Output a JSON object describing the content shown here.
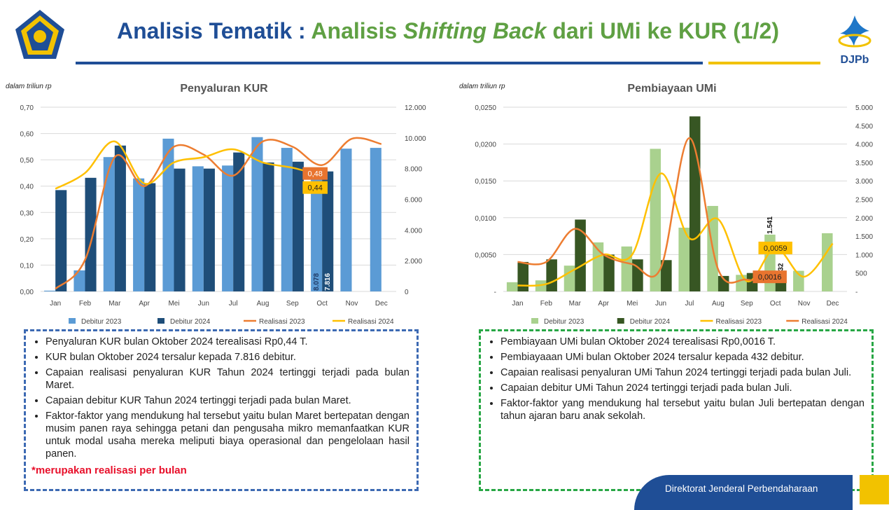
{
  "header": {
    "title_part1": "Analisis Tematik : ",
    "title_part2": "Analisis ",
    "title_part3": "Shifting Back",
    "title_part4": " dari UMi ke KUR (1/2)",
    "logo_right_text": "DJPb",
    "colors": {
      "blue": "#1f4e96",
      "green": "#5fa043",
      "gold": "#f2c200"
    }
  },
  "kur": {
    "unit_note": "dalam triliun rp",
    "chart_title": "Penyaluran KUR",
    "callouts": {
      "r2023": "0,48",
      "r2024": "0,44"
    },
    "bar_labels": {
      "d2023": "8.078",
      "d2024": "7.816"
    }
  },
  "umi": {
    "unit_note": "dalam triliun rp",
    "chart_title": "Pembiayaan UMi",
    "callouts": {
      "r2023": "0,0059",
      "r2024": "0,0016"
    },
    "bar_labels": {
      "d2023": "1.541",
      "d2024": "432"
    }
  },
  "chart_data": [
    {
      "type": "bar",
      "title": "Penyaluran KUR",
      "categories": [
        "Jan",
        "Feb",
        "Mar",
        "Apr",
        "Mei",
        "Jun",
        "Jul",
        "Aug",
        "Sep",
        "Oct",
        "Nov",
        "Dec"
      ],
      "left_axis": {
        "ticks": [
          "0,00",
          "0,10",
          "0,20",
          "0,30",
          "0,40",
          "0,50",
          "0,60",
          "0,70"
        ],
        "range": [
          0,
          0.7
        ]
      },
      "right_axis": {
        "ticks": [
          "0",
          "2.000",
          "4.000",
          "6.000",
          "8.000",
          "10.000",
          "12.000"
        ],
        "range": [
          0,
          12000
        ]
      },
      "bar_series": [
        {
          "name": "Debitur 2023",
          "color": "#5b9bd5",
          "axis": "right",
          "values": [
            50,
            1370,
            8750,
            7360,
            9950,
            8150,
            8200,
            10050,
            9350,
            8078,
            9300,
            9350
          ]
        },
        {
          "name": "Debitur 2024",
          "color": "#1f4e79",
          "axis": "right",
          "values": [
            6600,
            7400,
            9500,
            7050,
            8000,
            8000,
            9050,
            8400,
            8450,
            7816,
            null,
            null
          ]
        }
      ],
      "line_series": [
        {
          "name": "Realisasi 2023",
          "color": "#ed7d31",
          "axis": "left",
          "values": [
            0.01,
            0.12,
            0.51,
            0.4,
            0.55,
            0.52,
            0.44,
            0.57,
            0.55,
            0.48,
            0.58,
            0.56
          ]
        },
        {
          "name": "Realisasi 2024",
          "color": "#ffc000",
          "axis": "left",
          "values": [
            0.39,
            0.45,
            0.57,
            0.41,
            0.49,
            0.51,
            0.54,
            0.49,
            0.47,
            0.44,
            null,
            null
          ]
        }
      ],
      "legend": [
        "Debitur 2023",
        "Debitur 2024",
        "Realisasi 2023",
        "Realisasi 2024"
      ],
      "legend_position": "bottom"
    },
    {
      "type": "bar",
      "title": "Pembiayaan UMi",
      "categories": [
        "Jan",
        "Feb",
        "Mar",
        "Apr",
        "Mei",
        "Jun",
        "Jul",
        "Aug",
        "Sep",
        "Oct",
        "Nov",
        "Dec"
      ],
      "left_axis": {
        "ticks": [
          "-",
          "0,0050",
          "0,0100",
          "0,0150",
          "0,0200",
          "0,0250"
        ],
        "range": [
          0,
          0.025
        ]
      },
      "right_axis": {
        "ticks": [
          "-",
          "500",
          "1.000",
          "1.500",
          "2.000",
          "2.500",
          "3.000",
          "3.500",
          "4.000",
          "4.500",
          "5.000"
        ],
        "range": [
          0,
          5000
        ]
      },
      "bar_series": [
        {
          "name": "Debitur 2023",
          "color": "#a9d18e",
          "axis": "right",
          "values": [
            250,
            300,
            700,
            1330,
            1220,
            3870,
            1730,
            2320,
            450,
            1541,
            560,
            1580
          ]
        },
        {
          "name": "Debitur 2024",
          "color": "#375623",
          "axis": "right",
          "values": [
            800,
            870,
            1950,
            1000,
            870,
            850,
            4750,
            420,
            500,
            432,
            null,
            null
          ]
        }
      ],
      "line_series": [
        {
          "name": "Realisasi 2023",
          "color": "#ffc000",
          "axis": "left",
          "values": [
            0.0008,
            0.001,
            0.003,
            0.005,
            0.005,
            0.016,
            0.0072,
            0.0098,
            0.0014,
            0.0059,
            0.002,
            0.0065
          ]
        },
        {
          "name": "Realisasi 2024",
          "color": "#ed7d31",
          "axis": "left",
          "values": [
            0.004,
            0.004,
            0.0085,
            0.005,
            0.0037,
            0.0032,
            0.0208,
            0.003,
            0.0016,
            0.0016,
            null,
            null
          ]
        }
      ],
      "legend": [
        "Debitur 2023",
        "Debitur 2024",
        "Realisasi 2023",
        "Realisasi 2024"
      ],
      "legend_position": "bottom"
    }
  ],
  "kur_notes": {
    "items": [
      "Penyaluran  KUR bulan Oktober 2024 terealisasi Rp0,44 T.",
      "KUR bulan Oktober 2024 tersalur kepada 7.816 debitur.",
      "Capaian realisasi penyaluran KUR Tahun 2024 tertinggi terjadi pada bulan Maret.",
      "Capaian debitur KUR Tahun  2024 tertinggi  terjadi pada bulan  Maret.",
      "Faktor-faktor yang mendukung hal tersebut yaitu bulan Maret bertepatan dengan musim panen raya sehingga petani dan pengusaha mikro memanfaatkan KUR untuk modal usaha mereka meliputi biaya operasional dan pengelolaan hasil panen."
    ],
    "footnote": "*merupakan realisasi per bulan"
  },
  "umi_notes": {
    "items": [
      "Pembiayaan UMi bulan Oktober 2024 terealisasi Rp0,0016 T.",
      "Pembiayaaan UMi bulan Oktober 2024 tersalur kepada 432 debitur.",
      "Capaian realisasi penyaluran UMi Tahun 2024 tertinggi terjadi pada bulan Juli.",
      "Capaian debitur UMi Tahun  2024 tertinggi  terjadi pada bulan  Juli.",
      "Faktor-faktor yang mendukung hal tersebut yaitu bulan Juli bertepatan dengan tahun  ajaran baru anak sekolah."
    ]
  },
  "footer": {
    "text": "Direktorat Jenderal Perbendaharaan"
  }
}
